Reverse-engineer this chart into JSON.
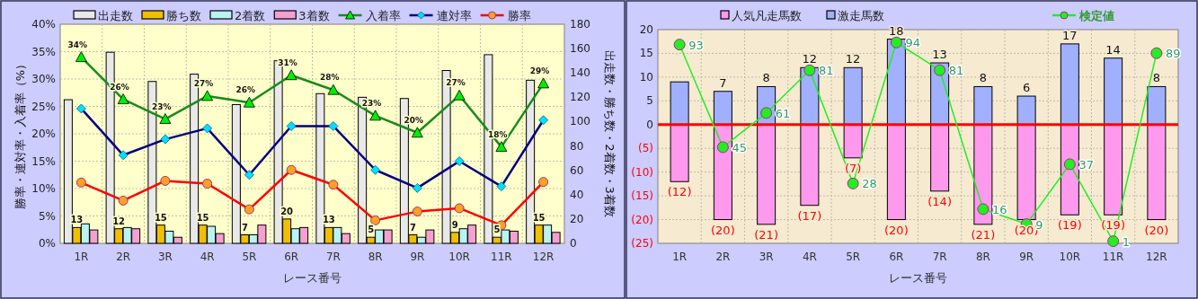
{
  "chart_data": [
    {
      "type": "bar",
      "categories": [
        "1R",
        "2R",
        "3R",
        "4R",
        "5R",
        "6R",
        "7R",
        "8R",
        "9R",
        "10R",
        "11R",
        "12R"
      ],
      "xlabel": "レース番号",
      "ylabel": "勝率・連対率・入着率（%）",
      "y2label": "出走数・勝ち数・2着数・3着数",
      "ylim": [
        0,
        40
      ],
      "yticks": [
        {
          "value": 0,
          "label": "0%"
        },
        {
          "value": 5,
          "label": "5%"
        },
        {
          "value": 10,
          "label": "10%"
        },
        {
          "value": 15,
          "label": "15%"
        },
        {
          "value": 20,
          "label": "20%"
        },
        {
          "value": 25,
          "label": "25%"
        },
        {
          "value": 30,
          "label": "30%"
        },
        {
          "value": 35,
          "label": "35%"
        },
        {
          "value": 40,
          "label": "40%"
        }
      ],
      "y2lim": [
        0,
        180
      ],
      "y2ticks": [
        0,
        20,
        40,
        60,
        80,
        100,
        120,
        140,
        160,
        180
      ],
      "grid": true,
      "legend": "top",
      "series": [
        {
          "name": "出走数",
          "color": "#e8e8e8",
          "axis": "y2",
          "values": [
            118,
            157,
            133,
            139,
            114,
            150,
            123,
            120,
            119,
            142,
            155,
            134
          ]
        },
        {
          "name": "勝ち数",
          "color": "#f0c000",
          "axis": "y2",
          "values": [
            13,
            12,
            15,
            15,
            7,
            20,
            13,
            5,
            7,
            9,
            5,
            15
          ],
          "value_labels": [
            "13",
            "12",
            "15",
            "15",
            "7",
            "20",
            "13",
            "5",
            "7",
            "9",
            "5",
            "15"
          ]
        },
        {
          "name": "2着数",
          "color": "#b8f4f4",
          "axis": "y2",
          "values": [
            16,
            13,
            10,
            14,
            7,
            12,
            13,
            11,
            5,
            12,
            11,
            15
          ]
        },
        {
          "name": "3着数",
          "color": "#f4a0d0",
          "axis": "y2",
          "values": [
            11,
            12,
            5,
            8,
            15,
            13,
            8,
            11,
            11,
            15,
            10,
            9
          ]
        },
        {
          "name": "入着率",
          "type": "line",
          "color": "#1a8a1a",
          "marker": "triangle",
          "values": [
            34.0,
            26.3,
            22.7,
            26.9,
            25.7,
            30.7,
            28.0,
            23.3,
            20.2,
            27.0,
            17.6,
            29.2
          ],
          "value_labels": [
            "34%",
            "26%",
            "23%",
            "27%",
            "26%",
            "31%",
            "28%",
            "23%",
            "20%",
            "27%",
            "18%",
            "29%"
          ]
        },
        {
          "name": "連対率",
          "type": "line",
          "color": "#000080",
          "marker": "diamond",
          "values": [
            24.6,
            16.1,
            19.0,
            21.0,
            12.5,
            21.4,
            21.4,
            13.4,
            10.1,
            15.0,
            10.4,
            22.5
          ]
        },
        {
          "name": "勝率",
          "type": "line",
          "color": "#ff0000",
          "marker": "circle",
          "values": [
            11.1,
            7.8,
            11.4,
            10.9,
            6.2,
            13.4,
            10.7,
            4.2,
            5.8,
            6.4,
            3.3,
            11.2
          ]
        }
      ]
    },
    {
      "type": "bar",
      "categories": [
        "1R",
        "2R",
        "3R",
        "4R",
        "5R",
        "6R",
        "7R",
        "8R",
        "9R",
        "10R",
        "11R",
        "12R"
      ],
      "xlabel": "レース番号",
      "ylim": [
        -25,
        20
      ],
      "yticks": [
        20,
        15,
        10,
        5,
        0,
        {
          "value": -5,
          "label": "(5)"
        },
        {
          "value": -10,
          "label": "(10)"
        },
        {
          "value": -15,
          "label": "(15)"
        },
        {
          "value": -20,
          "label": "(20)"
        },
        {
          "value": -25,
          "label": "(25)"
        }
      ],
      "y2lim": [
        0,
        100
      ],
      "grid": true,
      "legend": "top",
      "stacked": true,
      "ref_lines": [
        {
          "axis": "y",
          "value": 0,
          "color": "#ff0000"
        }
      ],
      "series": [
        {
          "name": "人気凡走馬数",
          "color": "#ff99ee",
          "values": [
            -12,
            -20,
            -21,
            -17,
            -7,
            -20,
            -14,
            -21,
            -20,
            -19,
            -19,
            -20
          ],
          "value_labels": [
            "(12)",
            "(20)",
            "(21)",
            "(17)",
            "(7)",
            "(20)",
            "(14)",
            "(21)",
            "(20)",
            "(19)",
            "(19)",
            "(20)"
          ]
        },
        {
          "name": "激走馬数",
          "color": "#a0b0ff",
          "values": [
            9,
            7,
            8,
            12,
            12,
            18,
            13,
            8,
            6,
            17,
            14,
            8
          ],
          "value_labels": [
            null,
            "7",
            "8",
            "12",
            "12",
            "18",
            "13",
            "8",
            "6",
            "17",
            "14",
            "8"
          ]
        },
        {
          "name": "検定値",
          "type": "line",
          "axis": "y2",
          "color": "#22ee22",
          "marker": "circle",
          "values": [
            93,
            45,
            61,
            81,
            28,
            94,
            81,
            16,
            9,
            37,
            1,
            89
          ],
          "value_labels": [
            "93",
            "45",
            "61",
            "81",
            "28",
            "94",
            "81",
            "16",
            "9",
            "37",
            "1",
            "89"
          ]
        }
      ]
    }
  ]
}
